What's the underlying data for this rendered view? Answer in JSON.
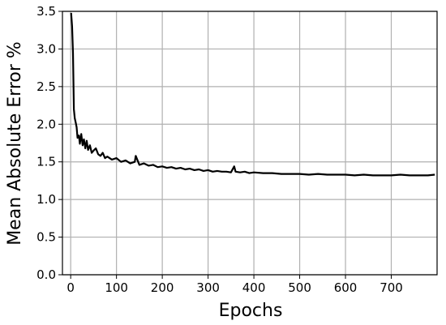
{
  "chart_data": {
    "type": "line",
    "xlabel": "Epochs",
    "ylabel": "Mean Absolute Error %",
    "xlim": [
      -18,
      800
    ],
    "ylim": [
      0.0,
      3.5
    ],
    "xticks": [
      0,
      100,
      200,
      300,
      400,
      500,
      600,
      700
    ],
    "xtick_labels": [
      "0",
      "100",
      "200",
      "300",
      "400",
      "500",
      "600",
      "700"
    ],
    "yticks": [
      0.0,
      0.5,
      1.0,
      1.5,
      2.0,
      2.5,
      3.0,
      3.5
    ],
    "ytick_labels": [
      "0.0",
      "0.5",
      "1.0",
      "1.5",
      "2.0",
      "2.5",
      "3.0",
      "3.5"
    ],
    "grid": true,
    "series": [
      {
        "color": "#000000",
        "x": [
          1,
          3,
          5,
          7,
          9,
          11,
          13,
          15,
          18,
          20,
          23,
          26,
          29,
          32,
          35,
          38,
          42,
          46,
          50,
          55,
          60,
          65,
          70,
          75,
          80,
          90,
          100,
          110,
          120,
          130,
          140,
          142,
          150,
          160,
          170,
          180,
          190,
          200,
          210,
          220,
          230,
          240,
          250,
          260,
          270,
          280,
          290,
          300,
          310,
          320,
          330,
          340,
          350,
          357,
          360,
          370,
          380,
          390,
          400,
          420,
          440,
          460,
          480,
          500,
          520,
          540,
          560,
          580,
          600,
          620,
          640,
          660,
          680,
          700,
          720,
          740,
          760,
          780,
          795
        ],
        "y": [
          3.48,
          3.3,
          2.95,
          2.2,
          2.08,
          2.02,
          1.96,
          1.82,
          1.85,
          1.74,
          1.87,
          1.72,
          1.8,
          1.68,
          1.78,
          1.66,
          1.72,
          1.62,
          1.65,
          1.68,
          1.6,
          1.58,
          1.62,
          1.55,
          1.57,
          1.53,
          1.55,
          1.5,
          1.52,
          1.48,
          1.5,
          1.58,
          1.46,
          1.48,
          1.45,
          1.46,
          1.43,
          1.44,
          1.42,
          1.43,
          1.41,
          1.42,
          1.4,
          1.41,
          1.39,
          1.4,
          1.38,
          1.39,
          1.37,
          1.38,
          1.37,
          1.37,
          1.36,
          1.44,
          1.37,
          1.36,
          1.37,
          1.35,
          1.36,
          1.35,
          1.35,
          1.34,
          1.34,
          1.34,
          1.33,
          1.34,
          1.33,
          1.33,
          1.33,
          1.32,
          1.33,
          1.32,
          1.32,
          1.32,
          1.33,
          1.32,
          1.32,
          1.32,
          1.33
        ]
      }
    ]
  }
}
